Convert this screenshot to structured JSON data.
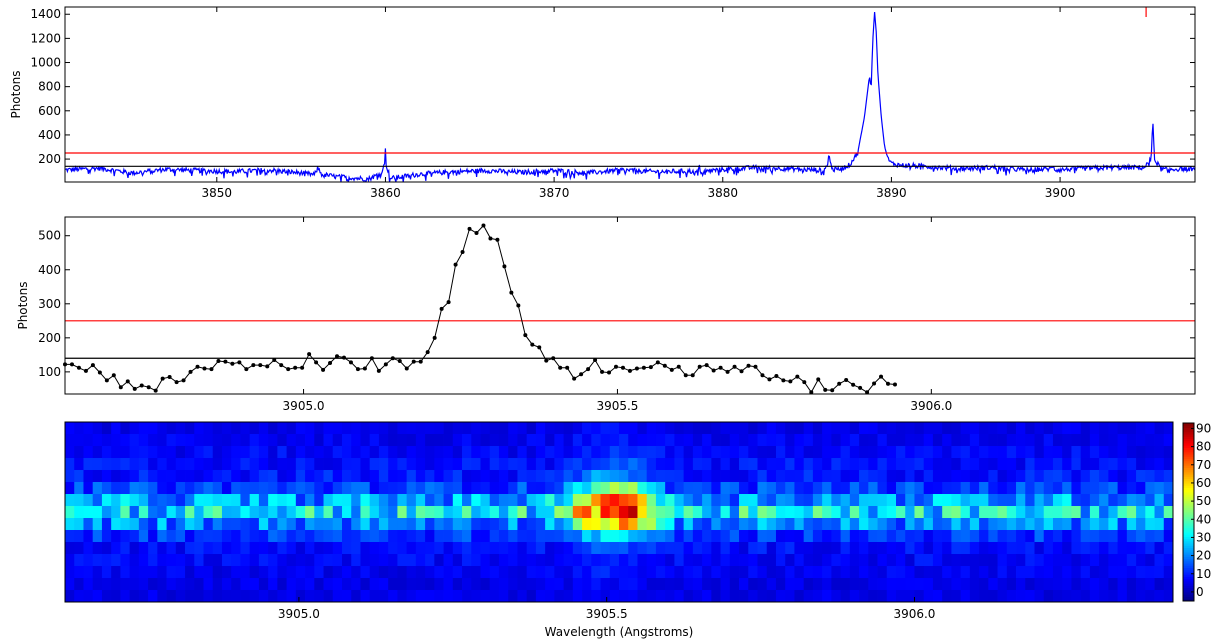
{
  "chart_data": [
    {
      "type": "line",
      "ylabel": "Photons",
      "xlim": [
        3841.0,
        3908.0
      ],
      "ylim": [
        10,
        1460
      ],
      "xticks": [
        "3850",
        "3860",
        "3870",
        "3880",
        "3890",
        "3900"
      ],
      "xtick_values": [
        3850,
        3860,
        3870,
        3880,
        3890,
        3900
      ],
      "yticks": [
        "200",
        "400",
        "600",
        "800",
        "1000",
        "1200",
        "1400"
      ],
      "ytick_values": [
        200,
        400,
        600,
        800,
        1000,
        1200,
        1400
      ],
      "colors": {
        "line": "#0000ff",
        "threshold": "#ff0000",
        "baseline": "#000000"
      },
      "series": [
        {
          "x": [
            3841.0,
            3843.0,
            3845.0,
            3847.0,
            3849.0,
            3851.0,
            3853.0,
            3855.0,
            3855.8,
            3856.0,
            3856.2,
            3857.0,
            3859.0,
            3859.7,
            3859.95,
            3860.0,
            3860.05,
            3860.3,
            3862.0,
            3864.0,
            3866.0,
            3868.0,
            3870.0,
            3872.0,
            3874.0,
            3876.0,
            3878.0,
            3878.5,
            3878.6,
            3878.7,
            3880.0,
            3882.0,
            3884.0,
            3886.0,
            3886.2,
            3886.3,
            3886.4,
            3886.6,
            3887.0,
            3887.5,
            3888.0,
            3888.4,
            3888.7,
            3888.8,
            3888.9,
            3889.0,
            3889.1,
            3889.2,
            3889.4,
            3889.6,
            3889.8,
            3890.0,
            3890.5,
            3892.0,
            3894.0,
            3896.0,
            3898.0,
            3899.5,
            3899.6,
            3899.7,
            3901.0,
            3903.0,
            3905.0,
            3905.4,
            3905.5,
            3905.6,
            3906.0,
            3908.0
          ],
          "y": [
            110,
            125,
            85,
            115,
            105,
            95,
            110,
            85,
            70,
            130,
            75,
            55,
            35,
            80,
            150,
            290,
            150,
            40,
            75,
            95,
            105,
            90,
            105,
            85,
            110,
            95,
            100,
            90,
            140,
            95,
            115,
            130,
            120,
            105,
            150,
            240,
            150,
            110,
            120,
            150,
            250,
            550,
            890,
            780,
            1200,
            1420,
            1250,
            900,
            550,
            300,
            200,
            165,
            150,
            140,
            120,
            130,
            110,
            120,
            150,
            110,
            120,
            130,
            130,
            200,
            530,
            200,
            115,
            120
          ]
        }
      ],
      "hlines": [
        250,
        140
      ]
    },
    {
      "type": "line",
      "ylabel": "Photons",
      "xlim": [
        3904.62,
        3906.42
      ],
      "ylim": [
        35,
        555
      ],
      "xticks": [
        "3905.0",
        "3905.5",
        "3906.0"
      ],
      "xtick_values": [
        3905.0,
        3905.5,
        3906.0
      ],
      "yticks": [
        "100",
        "200",
        "300",
        "400",
        "500"
      ],
      "ytick_values": [
        100,
        200,
        300,
        400,
        500
      ],
      "colors": {
        "line": "#000000",
        "threshold": "#ff0000",
        "baseline": "#000000"
      },
      "series": [
        {
          "x_start": 3904.62,
          "x_step": 0.01111,
          "y": [
            122,
            122,
            112,
            103,
            120,
            98,
            75,
            90,
            55,
            72,
            50,
            60,
            55,
            45,
            80,
            85,
            70,
            75,
            100,
            115,
            110,
            108,
            132,
            130,
            124,
            128,
            108,
            120,
            120,
            116,
            135,
            120,
            108,
            112,
            112,
            152,
            128,
            106,
            126,
            146,
            142,
            128,
            108,
            110,
            140,
            103,
            122,
            140,
            132,
            110,
            130,
            130,
            158,
            200,
            285,
            305,
            415,
            452,
            520,
            508,
            530,
            492,
            488,
            410,
            333,
            295,
            208,
            180,
            172,
            133,
            140,
            112,
            112,
            80,
            93,
            108,
            135,
            100,
            98,
            115,
            112,
            103,
            110,
            112,
            114,
            128,
            118,
            106,
            115,
            90,
            90,
            115,
            120,
            104,
            112,
            100,
            115,
            102,
            118,
            115,
            90,
            78,
            88,
            75,
            72,
            86,
            70,
            40,
            78,
            47,
            46,
            65,
            76,
            62,
            53,
            40,
            66,
            86,
            65,
            63
          ]
        }
      ],
      "hlines": [
        250,
        140
      ]
    },
    {
      "type": "heatmap",
      "xlabel": "Wavelength (Angstroms)",
      "xlim": [
        3904.62,
        3906.42
      ],
      "xticks": [
        "3905.0",
        "3905.5",
        "3906.0"
      ],
      "xtick_values": [
        3905.0,
        3905.5,
        3906.0
      ],
      "colorbar": {
        "range": [
          -5,
          93
        ],
        "ticks": [
          "0",
          "10",
          "20",
          "30",
          "40",
          "50",
          "60",
          "70",
          "80",
          "90"
        ],
        "tick_values": [
          0,
          10,
          20,
          30,
          40,
          50,
          60,
          70,
          80,
          90
        ],
        "colormap": "jet"
      },
      "rows": 15,
      "columns": 120,
      "row_levels": [
        5,
        6,
        7,
        8,
        9,
        13,
        22,
        30,
        20,
        12,
        8,
        7,
        6,
        5,
        5
      ],
      "row_peak_gain": [
        0.05,
        0.06,
        0.08,
        0.12,
        0.25,
        0.55,
        1.0,
        0.95,
        0.75,
        0.3,
        0.12,
        0.07,
        0.05,
        0.04,
        0.03
      ],
      "peak_center": 3905.51,
      "peak_width": 0.06,
      "peak_amplitude": 62
    }
  ]
}
